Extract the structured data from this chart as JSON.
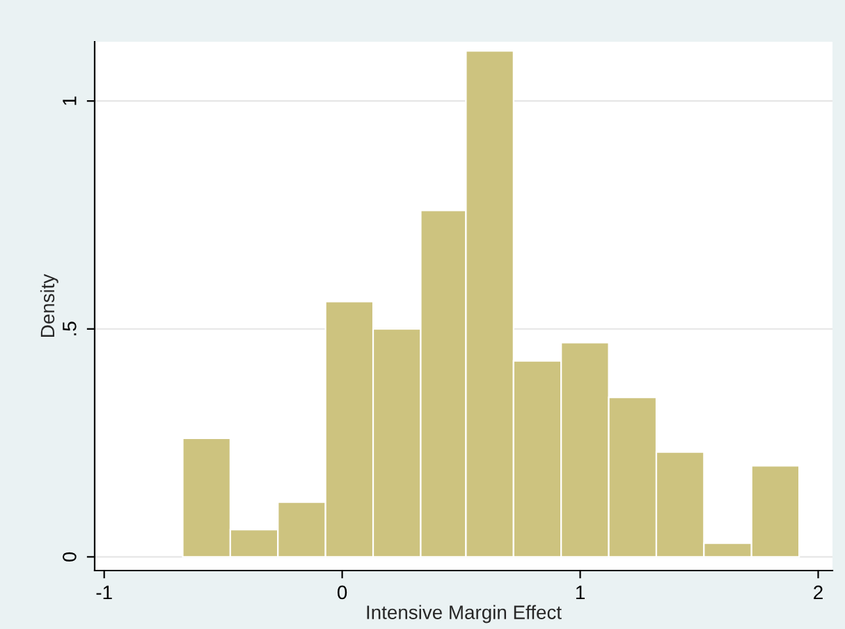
{
  "chart_data": {
    "type": "histogram",
    "xlabel": "Intensive Margin Effect",
    "ylabel": "Density",
    "bins": [
      -0.67,
      -0.47,
      -0.27,
      -0.07,
      0.13,
      0.33,
      0.52,
      0.72,
      0.92,
      1.12,
      1.32,
      1.52,
      1.72,
      1.92
    ],
    "values": [
      0.26,
      0.06,
      0.12,
      0.56,
      0.5,
      0.76,
      1.11,
      0.43,
      0.47,
      0.35,
      0.23,
      0.03,
      0.2
    ],
    "color": "#cdc37f",
    "xlim": [
      -1.04,
      2.06
    ],
    "xticks": [
      -1,
      0,
      1,
      2
    ],
    "ylim": [
      -0.03,
      1.13
    ],
    "yticks": [
      0,
      {
        "value": 0.5,
        "label": ".5"
      },
      1
    ],
    "grid": "y",
    "legend": false
  }
}
